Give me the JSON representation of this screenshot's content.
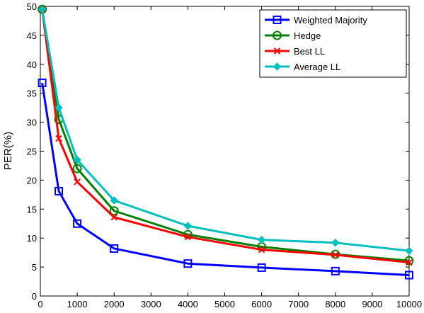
{
  "chart_data": {
    "type": "line",
    "title": "",
    "xlabel": "",
    "ylabel": "PER(%)",
    "xlim": [
      0,
      10000
    ],
    "ylim": [
      0,
      50
    ],
    "x_ticks": [
      0,
      1000,
      2000,
      3000,
      4000,
      5000,
      6000,
      7000,
      8000,
      9000,
      10000
    ],
    "y_ticks": [
      0,
      5,
      10,
      15,
      20,
      25,
      30,
      35,
      40,
      45,
      50
    ],
    "grid": false,
    "legend_position": "top-right",
    "x": [
      50,
      500,
      1000,
      2000,
      4000,
      6000,
      8000,
      10000
    ],
    "series": [
      {
        "name": "Weighted Majority",
        "color": "#0000ff",
        "marker": "square",
        "values": [
          36.8,
          18.1,
          12.5,
          8.2,
          5.6,
          4.9,
          4.3,
          3.6
        ]
      },
      {
        "name": "Hedge",
        "color": "#008000",
        "marker": "circle",
        "values": [
          49.5,
          30.5,
          22.0,
          14.7,
          10.6,
          8.5,
          7.2,
          6.1
        ]
      },
      {
        "name": "Best LL",
        "color": "#ff0000",
        "marker": "x",
        "values": [
          49.5,
          27.2,
          19.7,
          13.6,
          10.2,
          8.0,
          7.1,
          5.8
        ]
      },
      {
        "name": "Average LL",
        "color": "#00bfbf",
        "marker": "diamond",
        "values": [
          49.5,
          32.5,
          23.5,
          16.5,
          12.1,
          9.7,
          9.2,
          7.8
        ]
      }
    ]
  }
}
